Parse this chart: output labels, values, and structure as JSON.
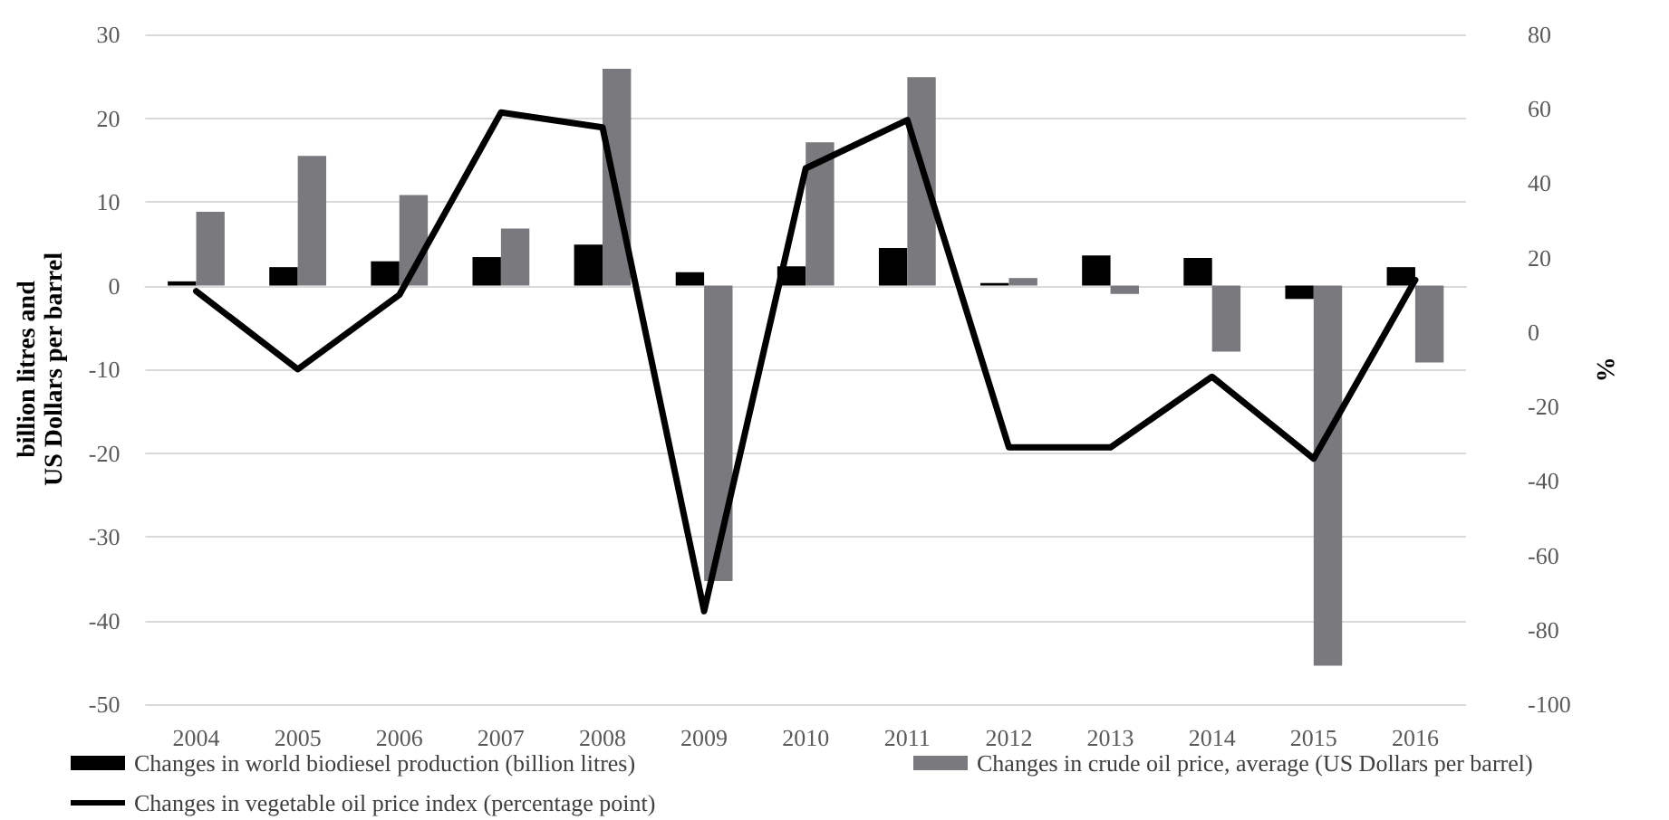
{
  "chart_data": {
    "type": "bar",
    "ylabel": "billion litres and\nUS Dollars per barrel",
    "y2label": "%",
    "categories": [
      "2004",
      "2005",
      "2006",
      "2007",
      "2008",
      "2009",
      "2010",
      "2011",
      "2012",
      "2013",
      "2014",
      "2015",
      "2016"
    ],
    "series": [
      {
        "name": "Changes in world biodiesel production (billion litres)",
        "color": "#000000",
        "values": [
          0.5,
          2.2,
          2.9,
          3.4,
          4.9,
          1.6,
          2.3,
          4.5,
          0.3,
          3.6,
          3.3,
          -1.6,
          2.2
        ]
      },
      {
        "name": "Changes in crude oil price, average (US Dollars per barrel)",
        "color": "#7a7a7e",
        "values": [
          8.8,
          15.5,
          10.8,
          6.8,
          25.9,
          -35.3,
          17.1,
          24.9,
          0.9,
          -1.0,
          -7.9,
          -45.4,
          -9.2
        ]
      },
      {
        "name": "Changes in vegetable oil price index (percentage point)",
        "type": "line",
        "axis": "y2",
        "color": "#000000",
        "values": [
          11,
          -10,
          10,
          59,
          55,
          -75,
          44,
          57,
          -31,
          -31,
          -12,
          -34,
          14
        ]
      }
    ],
    "ylim": [
      -50,
      30
    ],
    "yticks": [
      -50,
      -40,
      -30,
      -20,
      -10,
      0,
      10,
      20,
      30
    ],
    "y2lim": [
      -100,
      80
    ],
    "y2ticks": [
      -100,
      -80,
      -60,
      -40,
      -20,
      0,
      20,
      40,
      60,
      80
    ],
    "grid": "y",
    "legend": "bottom",
    "marker": "none",
    "line_style": "solid"
  }
}
